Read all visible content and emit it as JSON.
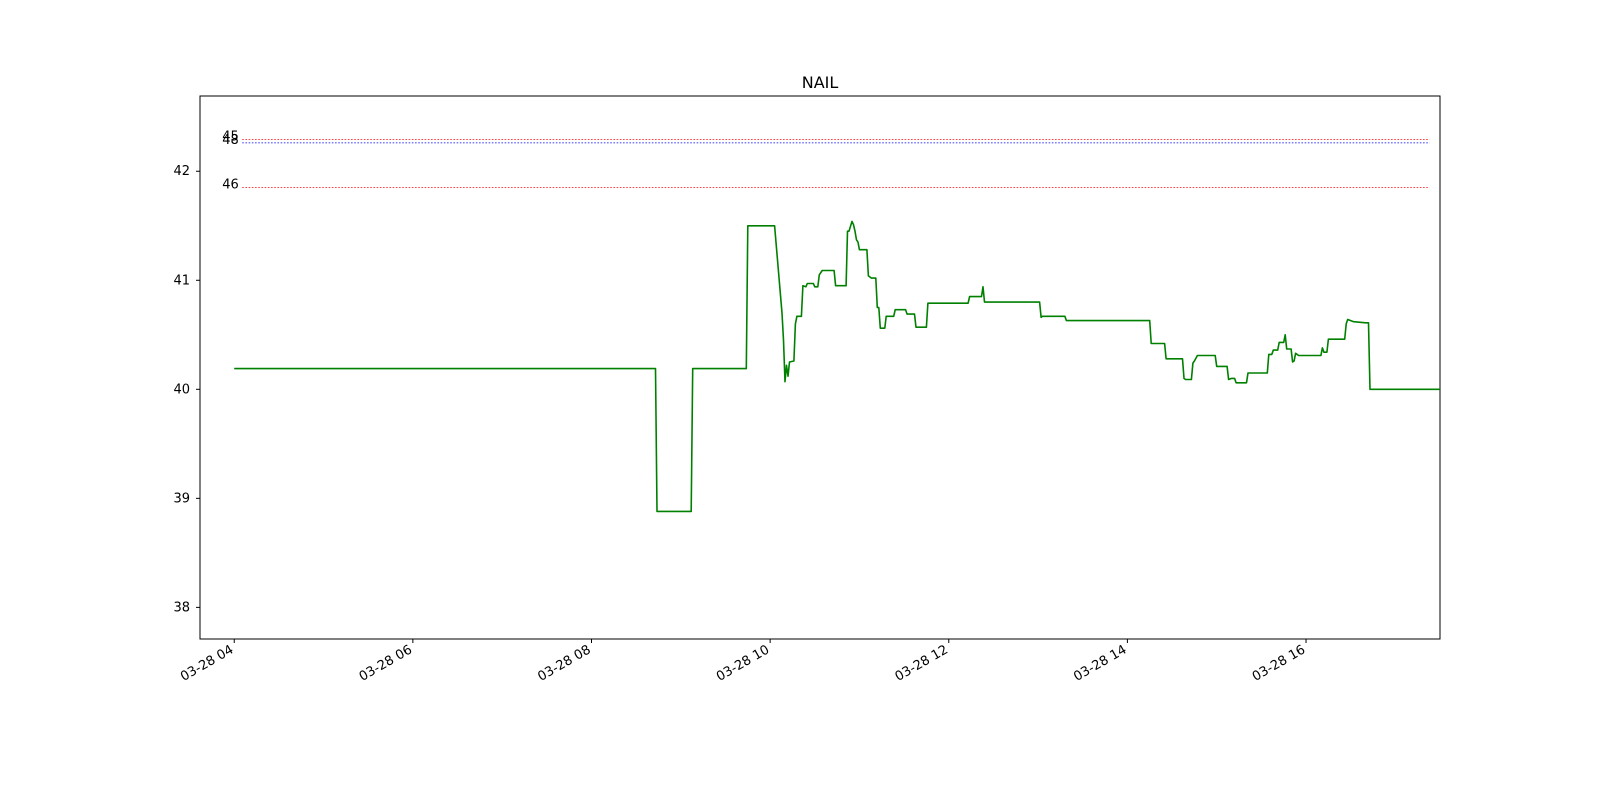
{
  "chart_data": {
    "type": "line",
    "title": "NAIL",
    "xlabel": "",
    "ylabel": "",
    "grid": false,
    "legend": "none",
    "xlim": [
      "03-28 03:37",
      "03-28 17:30"
    ],
    "ylim": [
      37.71,
      42.69
    ],
    "x_ticks": [
      "03-28 04",
      "03-28 06",
      "03-28 08",
      "03-28 10",
      "03-28 12",
      "03-28 14",
      "03-28 16"
    ],
    "y_ticks": [
      38,
      39,
      40,
      41,
      42
    ],
    "series": [
      {
        "color": "#008000",
        "points": [
          [
            "03-28 04:00",
            40.19
          ],
          [
            "03-28 08:43",
            40.19
          ],
          [
            "03-28 08:44",
            38.88
          ],
          [
            "03-28 09:07",
            38.88
          ],
          [
            "03-28 09:08",
            40.19
          ],
          [
            "03-28 09:44",
            40.19
          ],
          [
            "03-28 09:45",
            41.5
          ],
          [
            "03-28 10:03",
            41.5
          ],
          [
            "03-28 10:08",
            40.7
          ],
          [
            "03-28 10:09",
            40.45
          ],
          [
            "03-28 10:10",
            40.07
          ],
          [
            "03-28 10:11",
            40.22
          ],
          [
            "03-28 10:12",
            40.12
          ],
          [
            "03-28 10:13",
            40.25
          ],
          [
            "03-28 10:16",
            40.26
          ],
          [
            "03-28 10:17",
            40.6
          ],
          [
            "03-28 10:18",
            40.67
          ],
          [
            "03-28 10:21",
            40.67
          ],
          [
            "03-28 10:22",
            40.95
          ],
          [
            "03-28 10:24",
            40.94
          ],
          [
            "03-28 10:25",
            40.97
          ],
          [
            "03-28 10:29",
            40.97
          ],
          [
            "03-28 10:30",
            40.94
          ],
          [
            "03-28 10:32",
            40.94
          ],
          [
            "03-28 10:33",
            41.05
          ],
          [
            "03-28 10:35",
            41.09
          ],
          [
            "03-28 10:43",
            41.09
          ],
          [
            "03-28 10:44",
            40.95
          ],
          [
            "03-28 10:51",
            40.95
          ],
          [
            "03-28 10:52",
            41.45
          ],
          [
            "03-28 10:53",
            41.45
          ],
          [
            "03-28 10:55",
            41.54
          ],
          [
            "03-28 10:56",
            41.51
          ],
          [
            "03-28 10:57",
            41.45
          ],
          [
            "03-28 10:58",
            41.37
          ],
          [
            "03-28 10:59",
            41.35
          ],
          [
            "03-28 11:00",
            41.28
          ],
          [
            "03-28 11:05",
            41.28
          ],
          [
            "03-28 11:06",
            41.04
          ],
          [
            "03-28 11:08",
            41.02
          ],
          [
            "03-28 11:11",
            41.02
          ],
          [
            "03-28 11:12",
            40.75
          ],
          [
            "03-28 11:13",
            40.75
          ],
          [
            "03-28 11:14",
            40.56
          ],
          [
            "03-28 11:17",
            40.56
          ],
          [
            "03-28 11:18",
            40.67
          ],
          [
            "03-28 11:23",
            40.67
          ],
          [
            "03-28 11:24",
            40.73
          ],
          [
            "03-28 11:31",
            40.73
          ],
          [
            "03-28 11:32",
            40.69
          ],
          [
            "03-28 11:37",
            40.69
          ],
          [
            "03-28 11:38",
            40.57
          ],
          [
            "03-28 11:45",
            40.57
          ],
          [
            "03-28 11:46",
            40.79
          ],
          [
            "03-28 12:13",
            40.79
          ],
          [
            "03-28 12:14",
            40.85
          ],
          [
            "03-28 12:22",
            40.85
          ],
          [
            "03-28 12:23",
            40.94
          ],
          [
            "03-28 12:24",
            40.8
          ],
          [
            "03-28 13:01",
            40.8
          ],
          [
            "03-28 13:02",
            40.66
          ],
          [
            "03-28 13:03",
            40.67
          ],
          [
            "03-28 13:18",
            40.67
          ],
          [
            "03-28 13:19",
            40.63
          ],
          [
            "03-28 14:15",
            40.63
          ],
          [
            "03-28 14:16",
            40.42
          ],
          [
            "03-28 14:25",
            40.42
          ],
          [
            "03-28 14:26",
            40.28
          ],
          [
            "03-28 14:37",
            40.28
          ],
          [
            "03-28 14:38",
            40.1
          ],
          [
            "03-28 14:39",
            40.09
          ],
          [
            "03-28 14:43",
            40.09
          ],
          [
            "03-28 14:44",
            40.24
          ],
          [
            "03-28 14:45",
            40.26
          ],
          [
            "03-28 14:47",
            40.31
          ],
          [
            "03-28 14:59",
            40.31
          ],
          [
            "03-28 15:00",
            40.21
          ],
          [
            "03-28 15:07",
            40.21
          ],
          [
            "03-28 15:08",
            40.09
          ],
          [
            "03-28 15:10",
            40.1
          ],
          [
            "03-28 15:12",
            40.1
          ],
          [
            "03-28 15:13",
            40.06
          ],
          [
            "03-28 15:20",
            40.06
          ],
          [
            "03-28 15:21",
            40.15
          ],
          [
            "03-28 15:34",
            40.15
          ],
          [
            "03-28 15:35",
            40.32
          ],
          [
            "03-28 15:37",
            40.32
          ],
          [
            "03-28 15:38",
            40.36
          ],
          [
            "03-28 15:41",
            40.36
          ],
          [
            "03-28 15:42",
            40.43
          ],
          [
            "03-28 15:45",
            40.43
          ],
          [
            "03-28 15:46",
            40.5
          ],
          [
            "03-28 15:47",
            40.37
          ],
          [
            "03-28 15:50",
            40.37
          ],
          [
            "03-28 15:51",
            40.25
          ],
          [
            "03-28 15:52",
            40.26
          ],
          [
            "03-28 15:53",
            40.33
          ],
          [
            "03-28 15:55",
            40.31
          ],
          [
            "03-28 16:10",
            40.31
          ],
          [
            "03-28 16:11",
            40.38
          ],
          [
            "03-28 16:12",
            40.34
          ],
          [
            "03-28 16:14",
            40.34
          ],
          [
            "03-28 16:15",
            40.46
          ],
          [
            "03-28 16:26",
            40.46
          ],
          [
            "03-28 16:27",
            40.6
          ],
          [
            "03-28 16:28",
            40.64
          ],
          [
            "03-28 16:32",
            40.62
          ],
          [
            "03-28 16:40",
            40.61
          ],
          [
            "03-28 16:42",
            40.61
          ],
          [
            "03-28 16:43",
            40.0
          ],
          [
            "03-28 17:30",
            40.0
          ]
        ]
      }
    ],
    "hlines": [
      {
        "label": "45",
        "value": 42.29,
        "color": "#ff0000",
        "style": "dotted"
      },
      {
        "label": "48",
        "value": 42.26,
        "color": "#0000ff",
        "style": "dotted"
      },
      {
        "label": "46",
        "value": 41.85,
        "color": "#ff0000",
        "style": "dotted"
      }
    ]
  }
}
